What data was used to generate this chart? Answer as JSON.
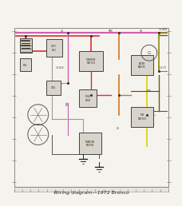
{
  "bg_color": "#f5f3ee",
  "border_color": "#777777",
  "title": "Wiring diagram—1972 Bronco",
  "title_fontsize": 4.5,
  "diagram_bg": "#f0ede5",
  "wire_colors": {
    "red": "#d93030",
    "pink": "#d060b0",
    "orange": "#d07820",
    "yellow": "#d8d010",
    "olive": "#8a8a10",
    "dark_olive": "#606010",
    "gray": "#999999",
    "dark_gray": "#555555",
    "brown": "#7a3a10",
    "black": "#222222",
    "lt_gray": "#bbbbbb"
  },
  "tick_color": "#777777",
  "ruler_color": "#999999"
}
